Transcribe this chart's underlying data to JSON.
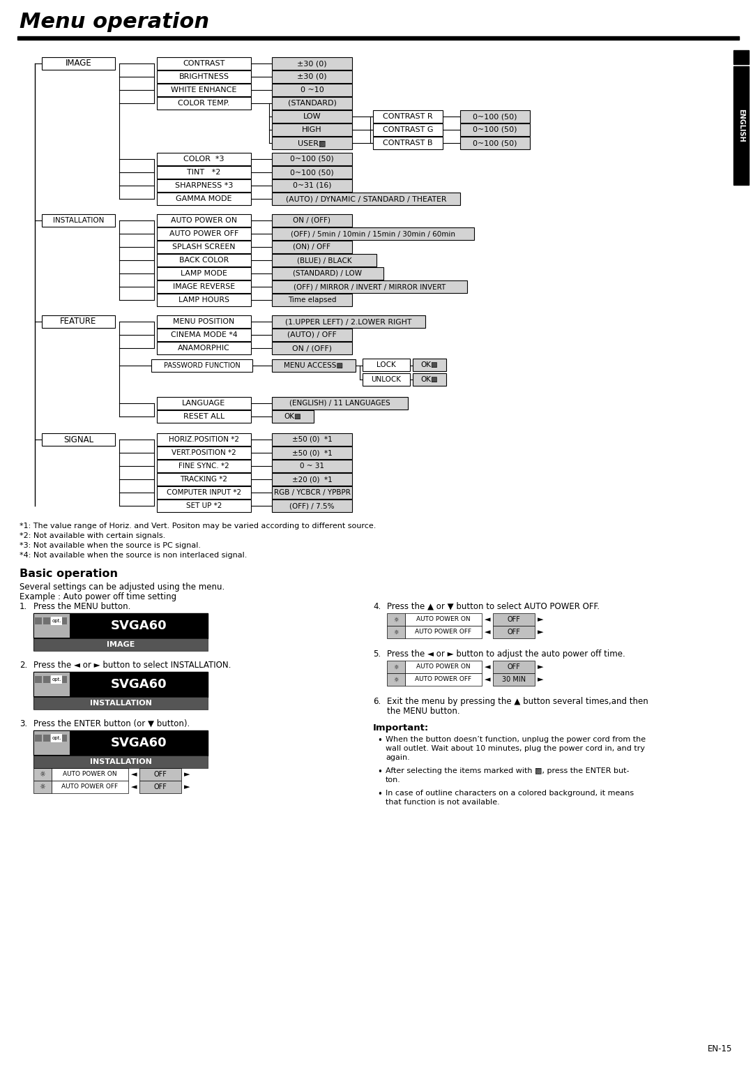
{
  "title": "Menu operation",
  "page_num": "EN-15",
  "bg_color": "#ffffff",
  "footnotes": [
    "*1: The value range of Horiz. and Vert. Positon may be varied according to different source.",
    "*2: Not available with certain signals.",
    "*3: Not available when the source is PC signal.",
    "*4: Not available when the source is non interlaced signal."
  ],
  "basic_op_title": "Basic operation",
  "basic_op_intro": "Several settings can be adjusted using the menu.",
  "basic_op_example": "Example : Auto power off time setting",
  "important_title": "Important:",
  "important_bullets": [
    "When the button doesn’t function, unplug the power cord from the wall outlet. Wait about 10 minutes, plug the power cord in, and try again.",
    "After selecting the items marked with ▩, press the ENTER but-\nton.",
    "In case of outline characters on a colored background, it means that function is not available."
  ]
}
